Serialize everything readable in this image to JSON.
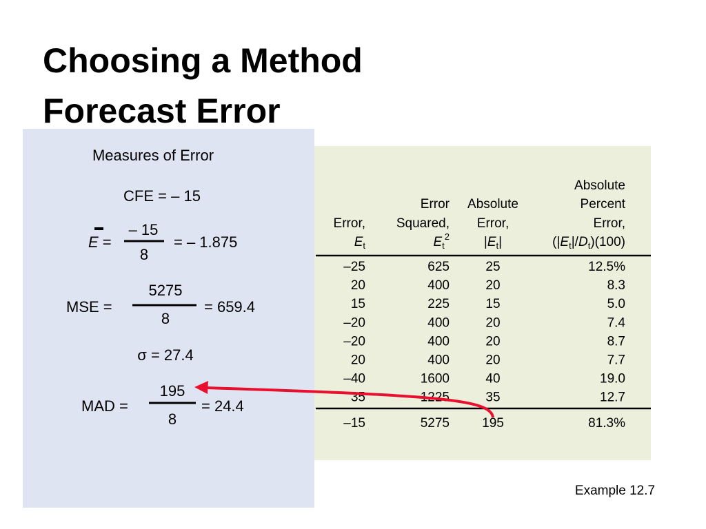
{
  "title": [
    "Choosing a Method",
    "Forecast Error"
  ],
  "measures": {
    "heading": "Measures of Error",
    "cfe": "CFE = – 15",
    "ebar": {
      "symbol": "E",
      "eq": " =",
      "numerator": "– 15",
      "denominator": "8",
      "result": "= – 1.875"
    },
    "mse": {
      "label": "MSE =",
      "numerator": "5275",
      "denominator": "8",
      "result": "= 659.4"
    },
    "sigma": "σ = 27.4",
    "mad": {
      "label": "MAD =",
      "numerator": "195",
      "denominator": "8",
      "result": "= 24.4"
    }
  },
  "table": {
    "headers": [
      [
        "Error,",
        "E",
        "t"
      ],
      [
        "Error",
        "Squared,",
        "E",
        "t",
        "2"
      ],
      [
        "Absolute",
        "Error,",
        "|",
        "E",
        "t",
        "|"
      ],
      [
        "Absolute",
        "Percent",
        "Error,",
        "(|",
        "E",
        "t",
        "|/",
        "D",
        "t",
        ")(100)"
      ]
    ],
    "rows": [
      [
        "–25",
        "625",
        "25",
        "12.5%"
      ],
      [
        "20",
        "400",
        "20",
        "8.3"
      ],
      [
        "15",
        "225",
        "15",
        "5.0"
      ],
      [
        "–20",
        "400",
        "20",
        "7.4"
      ],
      [
        "–20",
        "400",
        "20",
        "8.7"
      ],
      [
        "20",
        "400",
        "20",
        "7.7"
      ],
      [
        "–40",
        "1600",
        "40",
        "19.0"
      ],
      [
        "35",
        "1225",
        "35",
        "12.7"
      ]
    ],
    "totals": [
      "–15",
      "5275",
      "195",
      "81.3%"
    ]
  },
  "footer": "Example 12.7"
}
